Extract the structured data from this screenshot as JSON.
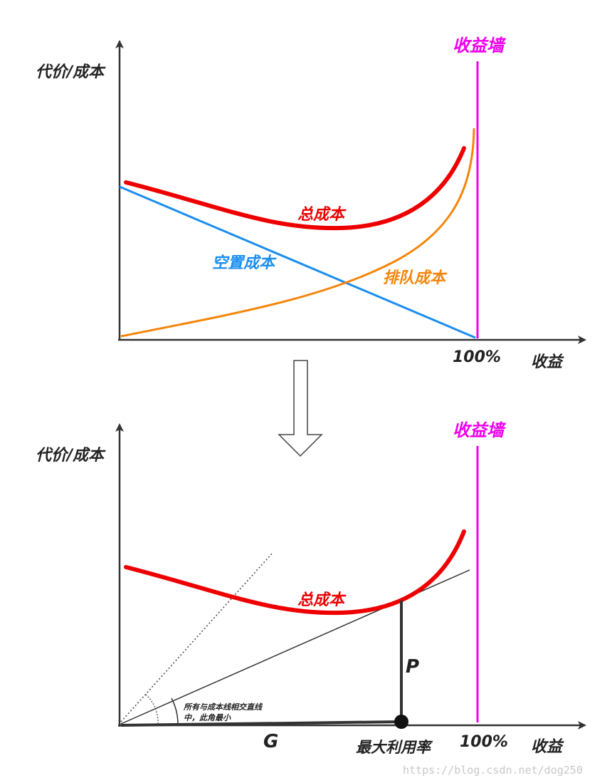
{
  "colors": {
    "total_cost": "#ee0000",
    "idle_cost": "#1a8ef0",
    "queue_cost": "#f5850a",
    "wall": "#ee00ee",
    "axis": "#333333",
    "text": "#222222"
  },
  "top_diagram": {
    "y_axis_label": "代价/成本",
    "x_axis_label": "收益",
    "x_mark_label": "100%",
    "wall_label": "收益墙",
    "curves": {
      "total_cost": "总成本",
      "idle_cost": "空置成本",
      "queue_cost": "排队成本"
    }
  },
  "transition_arrow_icon": "down-hollow-arrow-icon",
  "bottom_diagram": {
    "y_axis_label": "代价/成本",
    "x_axis_label": "收益",
    "x_mark_label": "100%",
    "wall_label": "收益墙",
    "total_cost_label": "总成本",
    "p_label": "P",
    "g_label": "G",
    "optimum_label": "最大利用率",
    "angle_note_line1": "所有与成本线相交直线",
    "angle_note_line2": "中，此角最小"
  },
  "watermark": "https://blog.csdn.net/dog250"
}
